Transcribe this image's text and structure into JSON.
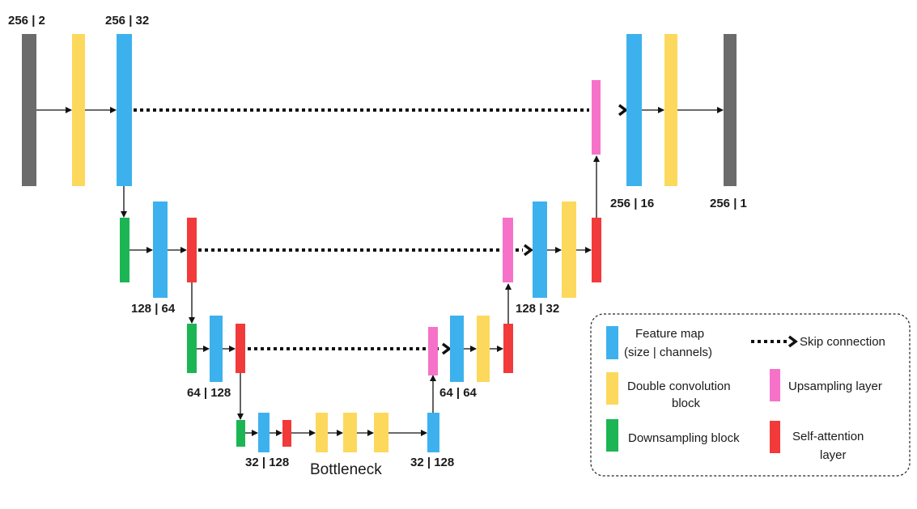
{
  "colors": {
    "io": "#6b6b6b",
    "feature_map": "#3db1ee",
    "double_conv": "#fcd95c",
    "downsampling": "#1cb554",
    "upsampling": "#f672c9",
    "self_attention": "#f23a3a",
    "line": "#111111"
  },
  "labels": {
    "input_dims": "256 | 2",
    "enc1_dims": "256 | 32",
    "enc2_dims": "128 | 64",
    "enc3_dims": "64 | 128",
    "enc4_dims": "32 | 128",
    "bottleneck": "Bottleneck",
    "dec4_dims": "32 | 128",
    "dec3_dims": "64 | 64",
    "dec2_dims": "128 | 32",
    "dec1_dims": "256 | 16",
    "output_dims": "256 | 1"
  },
  "legend": {
    "feature_map_line1": "Feature map",
    "feature_map_line2": "(size | channels)",
    "skip_connection": "Skip connection",
    "double_conv_line1": "Double convolution",
    "double_conv_line2": "block",
    "upsampling": "Upsampling layer",
    "downsampling": "Downsampling block",
    "self_attention_line1": "Self-attention",
    "self_attention_line2": "layer"
  }
}
